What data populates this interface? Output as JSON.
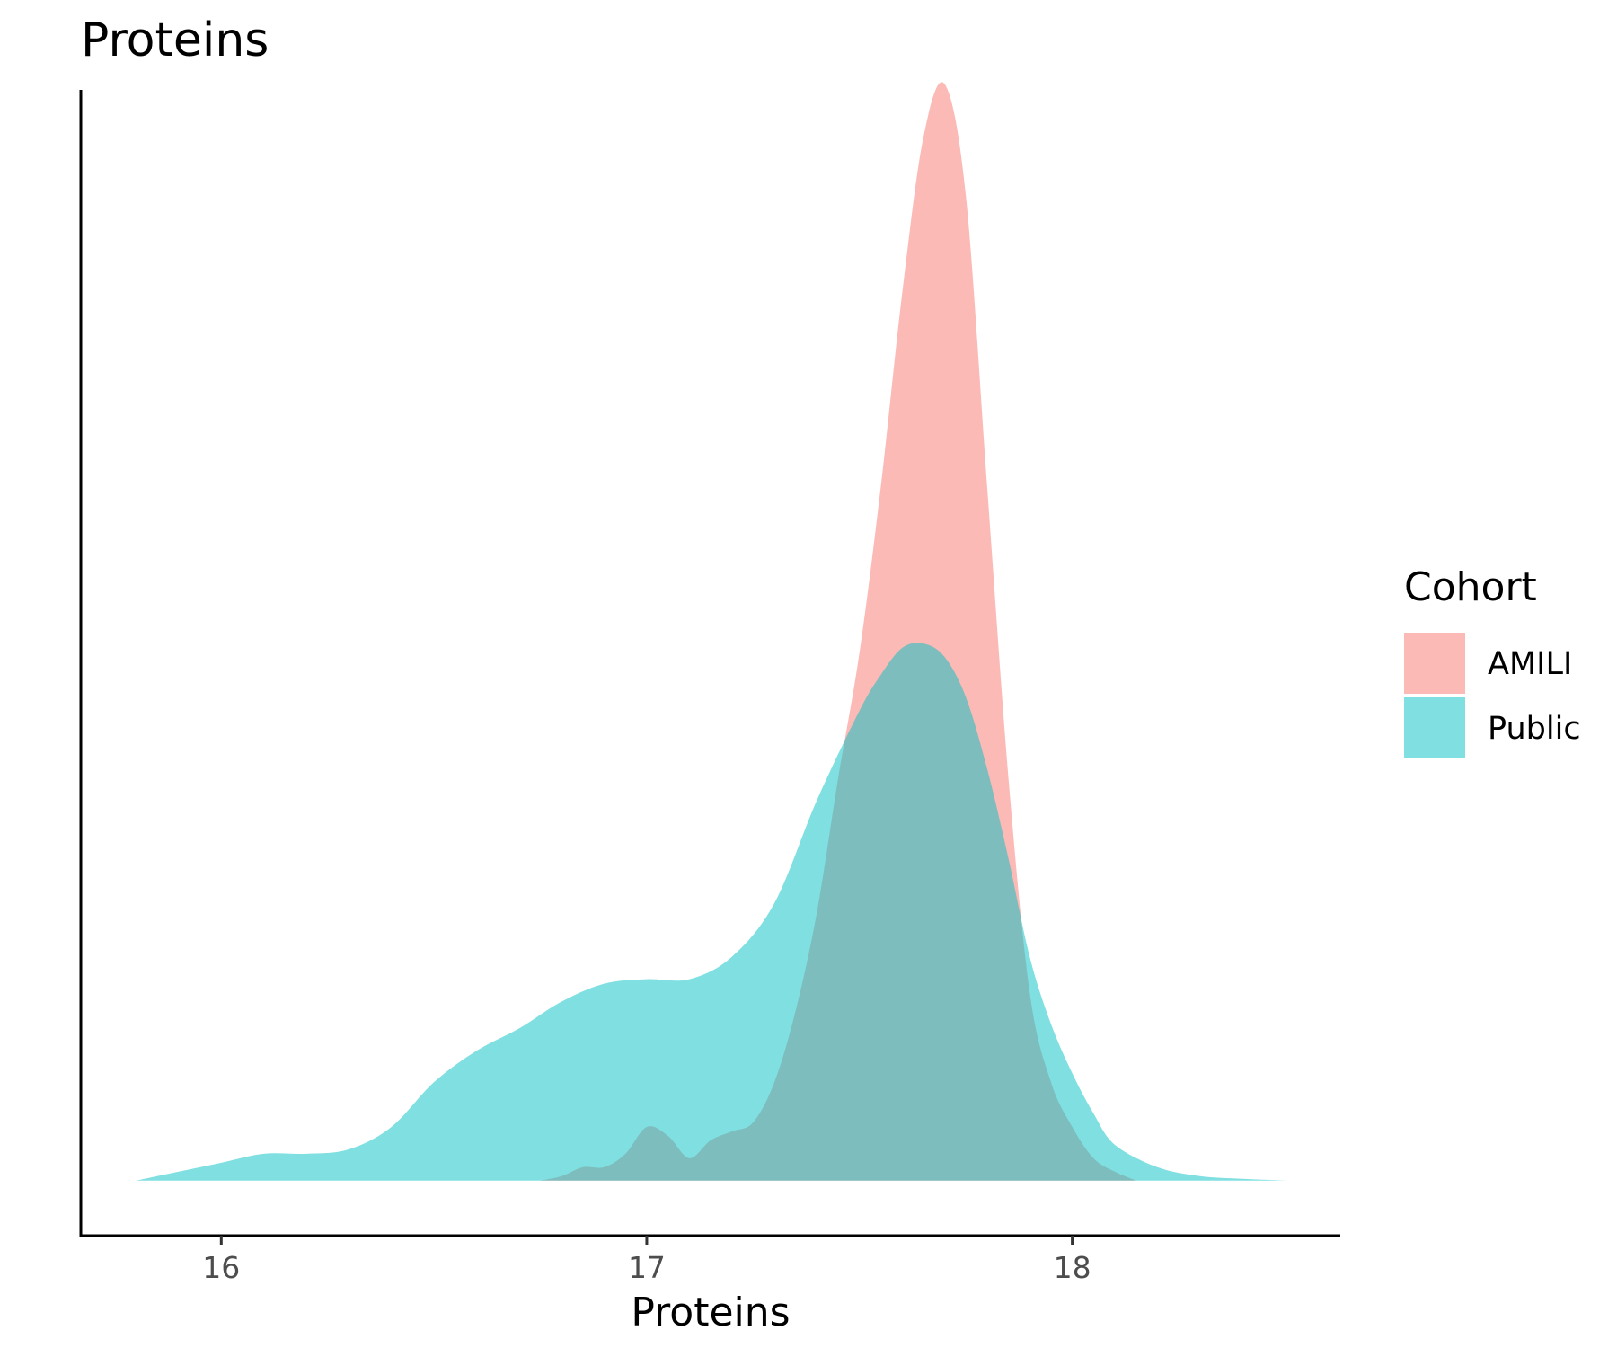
{
  "chart_data": {
    "type": "area",
    "title": "Proteins",
    "xlabel": "Proteins",
    "ylabel": "",
    "xlim": [
      15.67,
      18.63
    ],
    "ylim": [
      -0.123,
      2.437
    ],
    "xticks": [
      16,
      17,
      18
    ],
    "xtick_labels": [
      "16",
      "17",
      "18"
    ],
    "legend": {
      "title": "Cohort",
      "position": "right"
    },
    "grid": false,
    "series": [
      {
        "name": "AMILI",
        "color": "#F8766D",
        "opacity": 0.5,
        "x": [
          16.75,
          16.8,
          16.85,
          16.9,
          16.95,
          17.0,
          17.05,
          17.1,
          17.15,
          17.2,
          17.25,
          17.3,
          17.35,
          17.4,
          17.45,
          17.5,
          17.55,
          17.6,
          17.65,
          17.7,
          17.75,
          17.8,
          17.85,
          17.9,
          17.95,
          18.0,
          18.05,
          18.1,
          18.15
        ],
        "y": [
          0.0,
          0.01,
          0.03,
          0.03,
          0.06,
          0.12,
          0.1,
          0.05,
          0.09,
          0.11,
          0.13,
          0.22,
          0.38,
          0.6,
          0.9,
          1.18,
          1.55,
          1.98,
          2.33,
          2.45,
          2.2,
          1.55,
          0.9,
          0.42,
          0.22,
          0.12,
          0.05,
          0.02,
          0.0
        ]
      },
      {
        "name": "Public",
        "color": "#00BFC4",
        "opacity": 0.5,
        "x": [
          15.8,
          15.9,
          16.0,
          16.1,
          16.2,
          16.3,
          16.4,
          16.5,
          16.6,
          16.7,
          16.8,
          16.9,
          17.0,
          17.1,
          17.2,
          17.3,
          17.4,
          17.5,
          17.55,
          17.6,
          17.65,
          17.7,
          17.75,
          17.8,
          17.85,
          17.9,
          17.95,
          18.0,
          18.05,
          18.1,
          18.2,
          18.3,
          18.4,
          18.5
        ],
        "y": [
          0.0,
          0.02,
          0.04,
          0.06,
          0.06,
          0.07,
          0.12,
          0.22,
          0.29,
          0.34,
          0.4,
          0.44,
          0.45,
          0.45,
          0.5,
          0.62,
          0.85,
          1.05,
          1.13,
          1.19,
          1.2,
          1.17,
          1.08,
          0.92,
          0.72,
          0.5,
          0.35,
          0.24,
          0.15,
          0.08,
          0.03,
          0.01,
          0.004,
          0.0
        ]
      }
    ]
  }
}
